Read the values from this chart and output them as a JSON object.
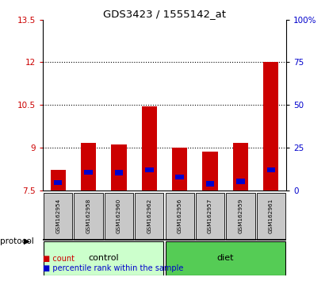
{
  "title": "GDS3423 / 1555142_at",
  "samples": [
    "GSM162954",
    "GSM162958",
    "GSM162960",
    "GSM162962",
    "GSM162956",
    "GSM162957",
    "GSM162959",
    "GSM162961"
  ],
  "red_tops": [
    8.22,
    9.15,
    9.1,
    10.45,
    9.0,
    8.85,
    9.15,
    12.02
  ],
  "blue_tops": [
    7.85,
    8.22,
    8.2,
    8.3,
    8.05,
    7.82,
    7.9,
    8.3
  ],
  "blue_heights": [
    0.18,
    0.18,
    0.18,
    0.18,
    0.18,
    0.18,
    0.18,
    0.18
  ],
  "base": 7.5,
  "ylim_left": [
    7.5,
    13.5
  ],
  "ylim_right": [
    0,
    100
  ],
  "yticks_left": [
    7.5,
    9.0,
    10.5,
    12.0,
    13.5
  ],
  "yticks_right": [
    0,
    25,
    50,
    75,
    100
  ],
  "ytick_labels_left": [
    "7.5",
    "9",
    "10.5",
    "12",
    "13.5"
  ],
  "ytick_labels_right": [
    "0",
    "25",
    "50",
    "75",
    "100%"
  ],
  "groups": [
    {
      "label": "control",
      "indices": [
        0,
        1,
        2,
        3
      ],
      "color": "#ccffcc"
    },
    {
      "label": "diet",
      "indices": [
        4,
        5,
        6,
        7
      ],
      "color": "#55cc55"
    }
  ],
  "protocol_label": "protocol",
  "bar_width": 0.5,
  "red_color": "#cc0000",
  "blue_color": "#0000cc",
  "bg_color": "#ffffff",
  "sample_box_color": "#c8c8c8",
  "legend_items": [
    "count",
    "percentile rank within the sample"
  ]
}
